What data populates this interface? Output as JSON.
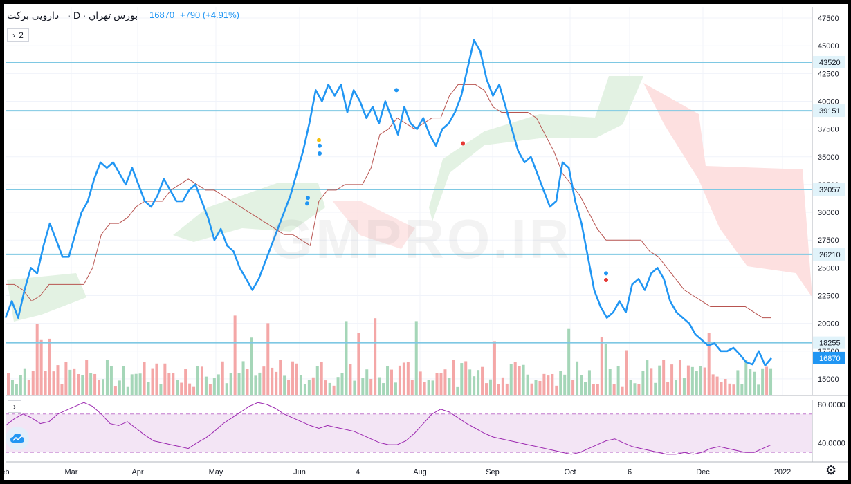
{
  "header": {
    "symbol": "دارویی برکت",
    "separator": "·",
    "interval": "D",
    "exchange": "بورس تهران",
    "last": "16870",
    "change": "+790 (+4.91%)"
  },
  "watermark": "GMPRO.IR",
  "toolbar": {
    "collapse_label": "2"
  },
  "colors": {
    "price_line": "#2196f3",
    "kijun_line": "#b85450",
    "level_line": "#7ec8e3",
    "cloud_bull": "#e3f2e3",
    "cloud_bear": "#fde0e0",
    "vol_up": "#a5d6b8",
    "vol_down": "#f4a7a7",
    "rsi_line": "#9c27b0",
    "rsi_band": "#f3e5f5"
  },
  "icons": [
    "chevron-right-icon",
    "tradingview-cloud-icon",
    "gear-icon"
  ],
  "chart_data": [
    {
      "type": "line",
      "title": "",
      "xlabel": "",
      "ylabel": "",
      "x_tick_labels": [
        "Feb",
        "Mar",
        "Apr",
        "May",
        "Jun",
        "4",
        "Aug",
        "Sep",
        "Oct",
        "6",
        "Dec",
        "2022"
      ],
      "y_tick_labels": [
        "15000",
        "17500",
        "20000",
        "22500",
        "25000",
        "27500",
        "30000",
        "32500",
        "35000",
        "37500",
        "40000",
        "42500",
        "45000",
        "47500"
      ],
      "ylim": [
        13500,
        48500
      ],
      "grid": true,
      "horizontal_levels": [
        43520,
        39151,
        32057,
        26210,
        18255
      ],
      "last_price_label": "16870",
      "series": [
        {
          "role": "price",
          "values": [
            20500,
            22000,
            20500,
            23000,
            25000,
            24500,
            27000,
            29000,
            27500,
            26000,
            26000,
            28000,
            30000,
            31000,
            33000,
            34500,
            34000,
            34500,
            33500,
            32500,
            34000,
            32500,
            31000,
            30500,
            31500,
            33000,
            32000,
            31000,
            31000,
            32000,
            32500,
            31000,
            29500,
            27500,
            28500,
            27000,
            26500,
            25000,
            24000,
            23000,
            24000,
            25500,
            27000,
            28500,
            30000,
            31500,
            33500,
            35500,
            38000,
            41000,
            40000,
            41500,
            40500,
            41500,
            39000,
            41000,
            40000,
            38500,
            39500,
            38000,
            40000,
            38500,
            37000,
            39500,
            38000,
            37500,
            38500,
            37000,
            36000,
            37500,
            38000,
            39000,
            40500,
            43000,
            45500,
            44500,
            42000,
            40500,
            41500,
            39500,
            37500,
            35500,
            34500,
            35000,
            33500,
            32000,
            30500,
            31000,
            34500,
            34000,
            31000,
            29000,
            26000,
            23000,
            21500,
            20500,
            21000,
            22000,
            21000,
            23500,
            24000,
            23000,
            24500,
            25000,
            24000,
            22000,
            21000,
            20500,
            20000,
            19000,
            18500,
            18000,
            18200,
            17500,
            17500,
            17800,
            17200,
            16500,
            16300,
            17500,
            16200,
            16870
          ]
        },
        {
          "role": "baseline",
          "values": [
            23500,
            23500,
            23000,
            22000,
            22500,
            23500,
            23500,
            23500,
            23500,
            23500,
            25000,
            28000,
            29000,
            29000,
            29500,
            30500,
            31000,
            31000,
            31000,
            32000,
            32500,
            33000,
            32500,
            32000,
            32000,
            31500,
            31000,
            30500,
            30000,
            29500,
            29000,
            28500,
            28000,
            28000,
            27500,
            27000,
            31000,
            32000,
            32000,
            32500,
            32500,
            32500,
            34000,
            37000,
            37500,
            38500,
            38000,
            37500,
            38000,
            38500,
            38500,
            40500,
            41500,
            41500,
            41500,
            41000,
            39500,
            39000,
            39000,
            39000,
            39000,
            38500,
            37000,
            35500,
            33500,
            32500,
            31500,
            30000,
            28500,
            27500,
            27500,
            27500,
            27500,
            27500,
            26500,
            26000,
            25000,
            24000,
            23000,
            22500,
            22000,
            21500,
            21500,
            21500,
            21500,
            21500,
            21000,
            20500,
            20500
          ]
        }
      ]
    },
    {
      "type": "bar",
      "title": "",
      "role": "volume",
      "note": "relative volume histogram"
    },
    {
      "type": "line",
      "title": "",
      "role": "rsi",
      "y_tick_labels": [
        "80.0000",
        "40.0000"
      ],
      "ylim": [
        20,
        85
      ],
      "bands": [
        70,
        30
      ],
      "values": [
        58,
        65,
        70,
        66,
        60,
        62,
        70,
        74,
        78,
        82,
        78,
        70,
        60,
        58,
        62,
        55,
        48,
        42,
        40,
        38,
        36,
        34,
        40,
        45,
        52,
        60,
        66,
        72,
        78,
        82,
        80,
        76,
        70,
        66,
        62,
        58,
        55,
        58,
        56,
        54,
        52,
        48,
        44,
        40,
        38,
        38,
        42,
        50,
        60,
        70,
        75,
        72,
        66,
        60,
        55,
        50,
        46,
        44,
        42,
        40,
        38,
        36,
        34,
        32,
        30,
        28,
        30,
        34,
        38,
        42,
        44,
        40,
        36,
        34,
        32,
        30,
        28,
        28,
        30,
        28,
        30,
        34,
        36,
        34,
        32,
        30,
        30,
        34,
        38
      ]
    }
  ]
}
